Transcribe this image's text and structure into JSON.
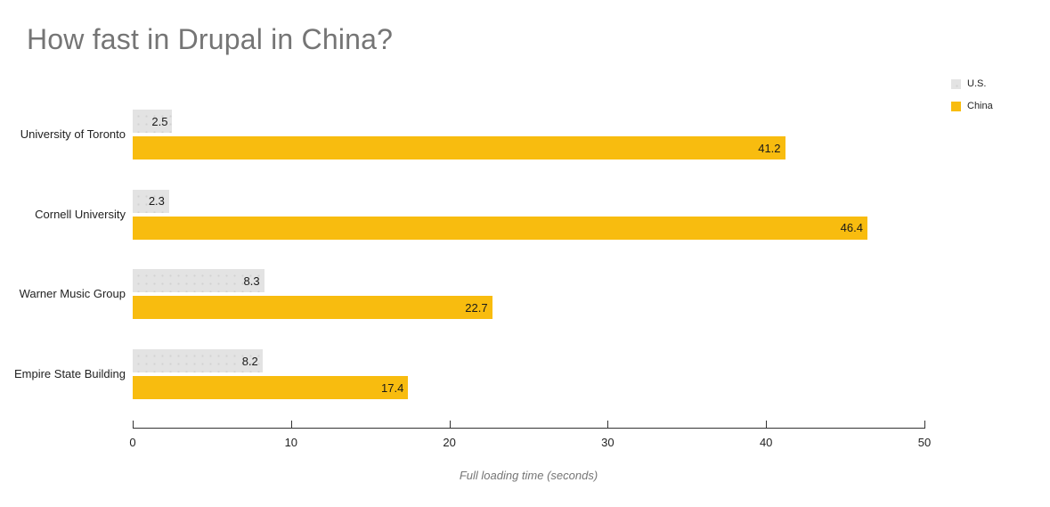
{
  "title": "How fast in Drupal in China?",
  "chart_data": {
    "type": "bar",
    "orientation": "horizontal",
    "title": "How fast in Drupal in China?",
    "xlabel": "Full loading time (seconds)",
    "ylabel": "",
    "categories": [
      "University of Toronto",
      "Cornell University",
      "Warner Music Group",
      "Empire State Building"
    ],
    "series": [
      {
        "name": "U.S.",
        "color": "#e3e3e3",
        "values": [
          2.5,
          2.3,
          8.3,
          8.2
        ]
      },
      {
        "name": "China",
        "color": "#f8bc0f",
        "values": [
          41.2,
          46.4,
          22.7,
          17.4
        ]
      }
    ],
    "xlim": [
      0,
      50
    ],
    "xticks": [
      0,
      10,
      20,
      30,
      40,
      50
    ],
    "grid": false,
    "legend_position": "top-right",
    "value_labels": "inside-end"
  },
  "colors": {
    "background": "#ffffff",
    "title": "#757575",
    "category_label": "#222222",
    "value_label": "#1a1a1a",
    "axis_line": "#333333",
    "tick_label": "#222222",
    "axis_title": "#757575",
    "us_bar": "#e3e3e3",
    "china_bar": "#f8bc0f"
  }
}
